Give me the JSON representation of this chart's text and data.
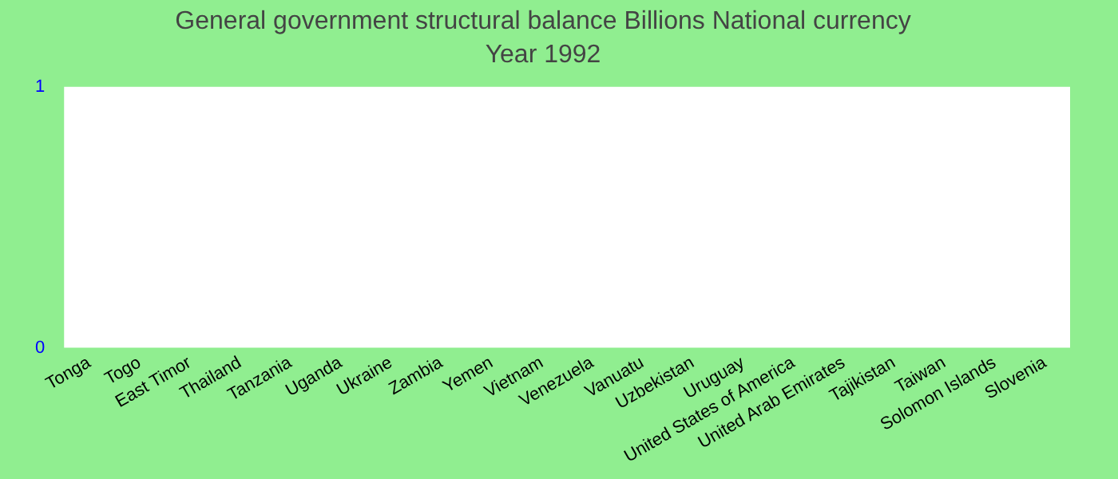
{
  "chart_data": {
    "type": "bar",
    "title": "General government structural balance Billions National currency",
    "subtitle": "Year 1992",
    "categories": [
      "Tonga",
      "Togo",
      "East Timor",
      "Thailand",
      "Tanzania",
      "Uganda",
      "Ukraine",
      "Zambia",
      "Yemen",
      "Vietnam",
      "Venezuela",
      "Vanuatu",
      "Uzbekistan",
      "Uruguay",
      "United States of America",
      "United Arab Emirates",
      "Tajikistan",
      "Taiwan",
      "Solomon Islands",
      "Slovenia"
    ],
    "values": [
      null,
      null,
      null,
      null,
      null,
      null,
      null,
      null,
      null,
      null,
      null,
      null,
      null,
      null,
      null,
      null,
      null,
      null,
      null,
      null
    ],
    "ylim": [
      0,
      1
    ],
    "yticks": [
      0,
      1
    ],
    "grid": false,
    "legend": false
  }
}
